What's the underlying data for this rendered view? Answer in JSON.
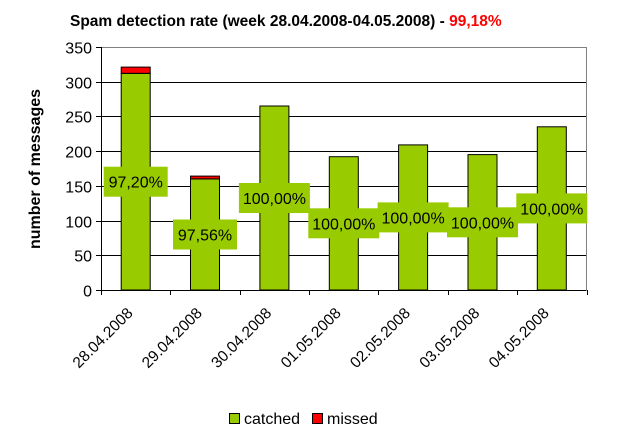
{
  "chart_data": {
    "type": "bar",
    "stacked": true,
    "title": "Spam detection rate (week 28.04.2008-04.05.2008) - ",
    "title_highlight": "99,18%",
    "xlabel": "",
    "ylabel": "number of messages",
    "ylim": [
      0,
      350
    ],
    "yticks": [
      0,
      50,
      100,
      150,
      200,
      250,
      300,
      350
    ],
    "ytick_labels": [
      "0",
      "50",
      "100",
      "150",
      "200",
      "250",
      "300",
      "350"
    ],
    "grid": true,
    "categories": [
      "28.04.2008",
      "29.04.2008",
      "30.04.2008",
      "01.05.2008",
      "02.05.2008",
      "03.05.2008",
      "04.05.2008"
    ],
    "series": [
      {
        "name": "catched",
        "color": "#99CC00",
        "values": [
          312,
          160,
          265,
          192,
          209,
          195,
          235
        ]
      },
      {
        "name": "missed",
        "color": "#FF0000",
        "values": [
          9,
          4,
          0,
          0,
          0,
          0,
          0
        ]
      }
    ],
    "data_labels": [
      "97,20%",
      "97,56%",
      "100,00%",
      "100,00%",
      "100,00%",
      "100,00%",
      "100,00%"
    ],
    "legend": {
      "position": "bottom",
      "entries": [
        "catched",
        "missed"
      ]
    },
    "highlight_color": "#FF0000"
  }
}
